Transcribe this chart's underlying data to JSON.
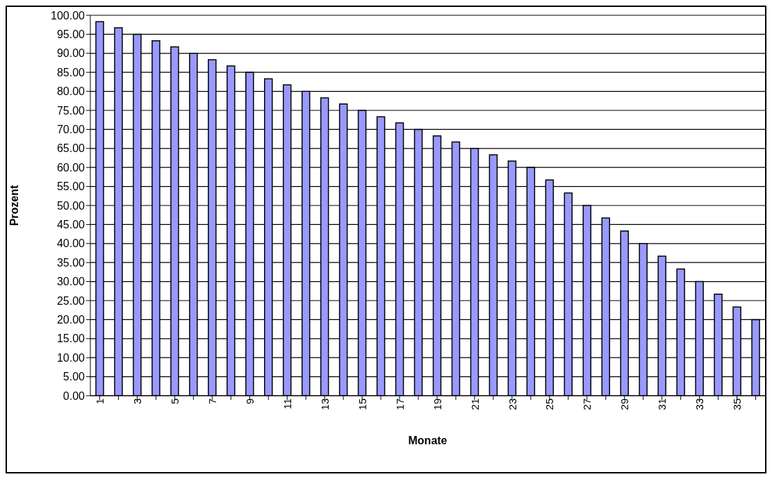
{
  "chart_data": {
    "type": "bar",
    "xlabel": "Monate",
    "ylabel": "Prozent",
    "categories": [
      "1",
      null,
      "3",
      null,
      "5",
      null,
      "7",
      null,
      "9",
      null,
      "11",
      null,
      "13",
      null,
      "15",
      null,
      "17",
      null,
      "19",
      null,
      "21",
      null,
      "23",
      null,
      "25",
      null,
      "27",
      null,
      "29",
      null,
      "31",
      null,
      "33",
      null,
      "35",
      null
    ],
    "values": [
      98.3,
      96.7,
      95,
      93.3,
      91.7,
      90,
      88.3,
      86.7,
      85,
      83.3,
      81.7,
      80,
      78.3,
      76.7,
      75,
      73.3,
      71.7,
      70,
      68.3,
      66.7,
      65,
      63.3,
      61.7,
      60,
      56.7,
      53.3,
      50,
      46.7,
      43.3,
      40,
      36.7,
      33.3,
      30,
      26.7,
      23.3,
      20
    ],
    "color": "#9999ff",
    "ylim": [
      0,
      100
    ],
    "yticks": [
      {
        "value": 0,
        "label": "0.00"
      },
      {
        "value": 5,
        "label": "5.00"
      },
      {
        "value": 10,
        "label": "10.00"
      },
      {
        "value": 15,
        "label": "15.00"
      },
      {
        "value": 20,
        "label": "20.00"
      },
      {
        "value": 25,
        "label": "25.00"
      },
      {
        "value": 30,
        "label": "30.00"
      },
      {
        "value": 35,
        "label": "35.00"
      },
      {
        "value": 40,
        "label": "40.00"
      },
      {
        "value": 45,
        "label": "45.00"
      },
      {
        "value": 50,
        "label": "50.00"
      },
      {
        "value": 55,
        "label": "55.00"
      },
      {
        "value": 60,
        "label": "60.00"
      },
      {
        "value": 65,
        "label": "65.00"
      },
      {
        "value": 70,
        "label": "70.00"
      },
      {
        "value": 75,
        "label": "75.00"
      },
      {
        "value": 80,
        "label": "80.00"
      },
      {
        "value": 85,
        "label": "85.00"
      },
      {
        "value": 90,
        "label": "90.00"
      },
      {
        "value": 95,
        "label": "95.00"
      },
      {
        "value": 100,
        "label": "100.00"
      }
    ],
    "grid": "y",
    "legend": false
  }
}
